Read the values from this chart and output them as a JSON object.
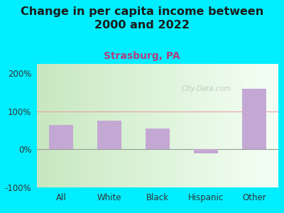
{
  "title": "Change in per capita income between\n2000 and 2022",
  "subtitle": "Strasburg, PA",
  "categories": [
    "All",
    "White",
    "Black",
    "Hispanic",
    "Other"
  ],
  "values": [
    65,
    75,
    55,
    -10,
    160
  ],
  "bar_color": "#c4a8d4",
  "title_fontsize": 11.5,
  "subtitle_fontsize": 10,
  "subtitle_color": "#b04080",
  "background_color": "#00eeff",
  "ylim": [
    -100,
    225
  ],
  "yticks": [
    -100,
    0,
    100,
    200
  ],
  "ytick_labels": [
    "-100%",
    "0%",
    "100%",
    "200%"
  ],
  "watermark": "City-Data.com"
}
